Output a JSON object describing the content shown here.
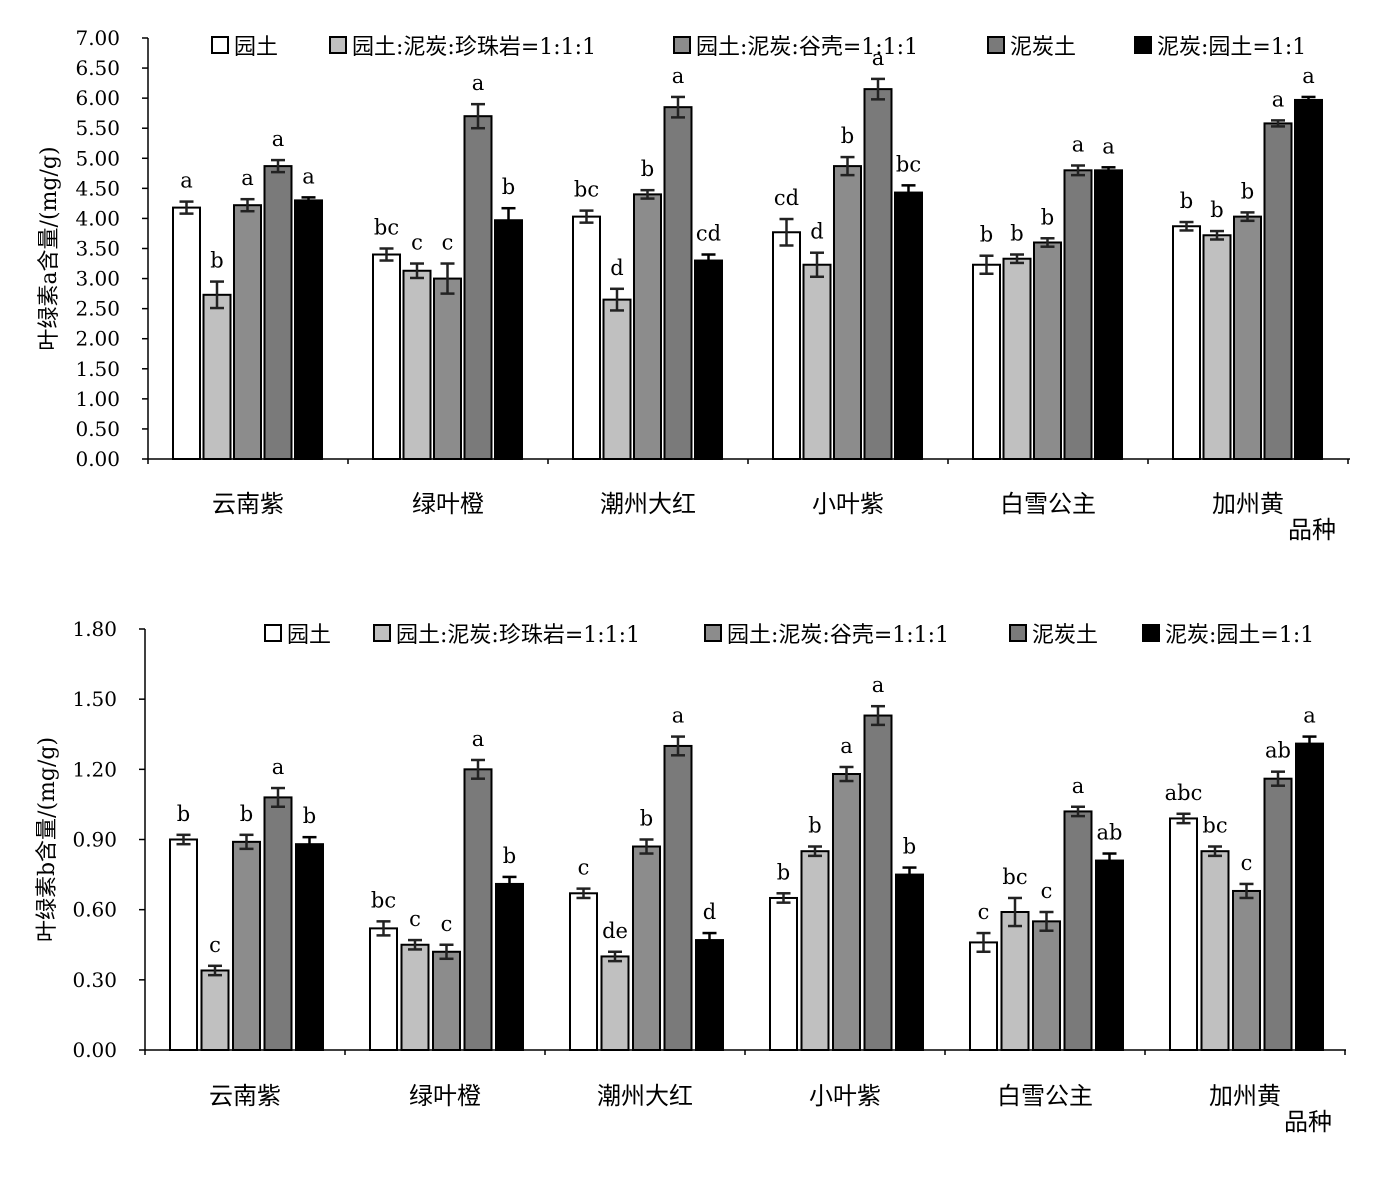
{
  "series_names": [
    "园土",
    "园土:泥炭:珍珠岩=1:1:1",
    "园土:泥炭:谷壳=1:1:1",
    "泥炭土",
    "泥炭:园土=1:1"
  ],
  "series_colors": [
    "#ffffff",
    "#c0c0c0",
    "#8c8c8c",
    "#7a7a7a",
    "#000000"
  ],
  "chart_data": [
    {
      "type": "bar",
      "ylabel": "叶绿素a含量/(mg/g)",
      "xlabel": "品种",
      "ylim": [
        0,
        7
      ],
      "yticks": [
        "0.00",
        "0.50",
        "1.00",
        "1.50",
        "2.00",
        "2.50",
        "3.00",
        "3.50",
        "4.00",
        "4.50",
        "5.00",
        "5.50",
        "6.00",
        "6.50",
        "7.00"
      ],
      "categories": [
        "云南紫",
        "绿叶橙",
        "潮州大红",
        "小叶紫",
        "白雪公主",
        "加州黄"
      ],
      "legend_position": "top",
      "series": [
        {
          "name": "园土",
          "values": [
            4.18,
            3.4,
            4.03,
            3.77,
            3.23,
            3.87
          ],
          "errors": [
            0.1,
            0.1,
            0.1,
            0.22,
            0.15,
            0.07
          ],
          "labels": [
            "a",
            "bc",
            "bc",
            "cd",
            "b",
            "b"
          ]
        },
        {
          "name": "园土:泥炭:珍珠岩=1:1:1",
          "values": [
            2.73,
            3.13,
            2.65,
            3.23,
            3.33,
            3.72
          ],
          "errors": [
            0.22,
            0.12,
            0.18,
            0.2,
            0.07,
            0.07
          ],
          "labels": [
            "b",
            "c",
            "d",
            "d",
            "b",
            "b"
          ]
        },
        {
          "name": "园土:泥炭:谷壳=1:1:1",
          "values": [
            4.22,
            3.0,
            4.4,
            4.87,
            3.6,
            4.03
          ],
          "errors": [
            0.1,
            0.25,
            0.07,
            0.15,
            0.07,
            0.07
          ],
          "labels": [
            "a",
            "c",
            "b",
            "b",
            "b",
            "b"
          ]
        },
        {
          "name": "泥炭土",
          "values": [
            4.87,
            5.7,
            5.85,
            6.15,
            4.8,
            5.58
          ],
          "errors": [
            0.1,
            0.2,
            0.17,
            0.17,
            0.08,
            0.05
          ],
          "labels": [
            "a",
            "a",
            "a",
            "a",
            "a",
            "a"
          ]
        },
        {
          "name": "泥炭:园土=1:1",
          "values": [
            4.3,
            3.97,
            3.3,
            4.43,
            4.8,
            5.97
          ],
          "errors": [
            0.05,
            0.2,
            0.1,
            0.12,
            0.05,
            0.05
          ],
          "labels": [
            "a",
            "b",
            "cd",
            "bc",
            "a",
            "a"
          ]
        }
      ]
    },
    {
      "type": "bar",
      "ylabel": "叶绿素b含量/(mg/g)",
      "xlabel": "品种",
      "ylim": [
        0,
        1.8
      ],
      "yticks": [
        "0.00",
        "0.30",
        "0.60",
        "0.90",
        "1.20",
        "1.50",
        "1.80"
      ],
      "categories": [
        "云南紫",
        "绿叶橙",
        "潮州大红",
        "小叶紫",
        "白雪公主",
        "加州黄"
      ],
      "legend_position": "top",
      "series": [
        {
          "name": "园土",
          "values": [
            0.9,
            0.52,
            0.67,
            0.65,
            0.46,
            0.99
          ],
          "errors": [
            0.02,
            0.03,
            0.02,
            0.02,
            0.04,
            0.02
          ],
          "labels": [
            "b",
            "bc",
            "c",
            "b",
            "c",
            "abc"
          ]
        },
        {
          "name": "园土:泥炭:珍珠岩=1:1:1",
          "values": [
            0.34,
            0.45,
            0.4,
            0.85,
            0.59,
            0.85
          ],
          "errors": [
            0.02,
            0.02,
            0.02,
            0.02,
            0.06,
            0.02
          ],
          "labels": [
            "c",
            "c",
            "de",
            "b",
            "bc",
            "bc"
          ]
        },
        {
          "name": "园土:泥炭:谷壳=1:1:1",
          "values": [
            0.89,
            0.42,
            0.87,
            1.18,
            0.55,
            0.68
          ],
          "errors": [
            0.03,
            0.03,
            0.03,
            0.03,
            0.04,
            0.03
          ],
          "labels": [
            "b",
            "c",
            "b",
            "a",
            "c",
            "c"
          ]
        },
        {
          "name": "泥炭土",
          "values": [
            1.08,
            1.2,
            1.3,
            1.43,
            1.02,
            1.16
          ],
          "errors": [
            0.04,
            0.04,
            0.04,
            0.04,
            0.02,
            0.03
          ],
          "labels": [
            "a",
            "a",
            "a",
            "a",
            "a",
            "ab"
          ]
        },
        {
          "name": "泥炭:园土=1:1",
          "values": [
            0.88,
            0.71,
            0.47,
            0.75,
            0.81,
            1.31
          ],
          "errors": [
            0.03,
            0.03,
            0.03,
            0.03,
            0.03,
            0.03
          ],
          "labels": [
            "b",
            "b",
            "d",
            "b",
            "ab",
            "a"
          ]
        }
      ]
    }
  ]
}
